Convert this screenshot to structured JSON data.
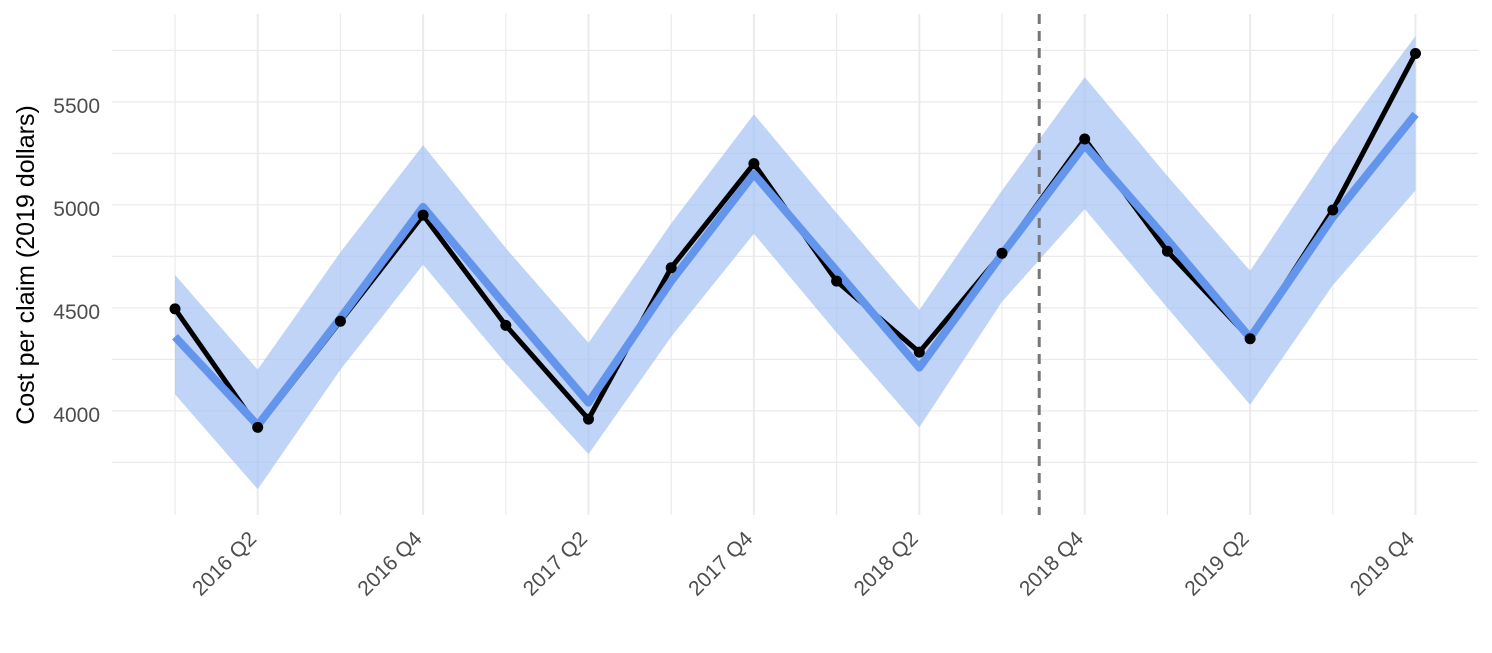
{
  "chart_data": {
    "type": "line",
    "title": "",
    "xlabel": "",
    "ylabel": "Cost per claim (2019 dollars)",
    "categories": [
      "2016 Q1",
      "2016 Q2",
      "2016 Q3",
      "2016 Q4",
      "2017 Q1",
      "2017 Q2",
      "2017 Q3",
      "2017 Q4",
      "2018 Q1",
      "2018 Q2",
      "2018 Q3",
      "2018 Q4",
      "2019 Q1",
      "2019 Q2",
      "2019 Q3",
      "2019 Q4"
    ],
    "x_tick_labels": [
      "2016 Q2",
      "2016 Q4",
      "2017 Q2",
      "2017 Q4",
      "2018 Q2",
      "2018 Q4",
      "2019 Q2",
      "2019 Q4"
    ],
    "y_ticks": [
      4000,
      4500,
      5000,
      5500
    ],
    "ylim": [
      3520,
      5880
    ],
    "grid": true,
    "vline_after_category": "2018 Q3",
    "series": [
      {
        "role": "observed",
        "color": "#000000",
        "values": [
          4515,
          3940,
          4455,
          4970,
          4435,
          3980,
          4715,
          5220,
          4650,
          4305,
          4785,
          5340,
          4795,
          4370,
          4995,
          5755
        ]
      },
      {
        "role": "fitted",
        "color": "#6495ED",
        "values": [
          4380,
          3950,
          4470,
          5010,
          4530,
          4060,
          4650,
          5170,
          4700,
          4230,
          4780,
          5310,
          4850,
          4375,
          4960,
          5460
        ]
      }
    ],
    "band": {
      "color": "#A4C2F4",
      "lower": [
        4100,
        3640,
        4220,
        4730,
        4250,
        3810,
        4380,
        4880,
        4400,
        3940,
        4550,
        5000,
        4520,
        4050,
        4630,
        5090
      ],
      "upper": [
        4680,
        4220,
        4790,
        5310,
        4810,
        4350,
        4930,
        5460,
        4980,
        4510,
        5090,
        5640,
        5160,
        4700,
        5300,
        5840
      ]
    }
  }
}
